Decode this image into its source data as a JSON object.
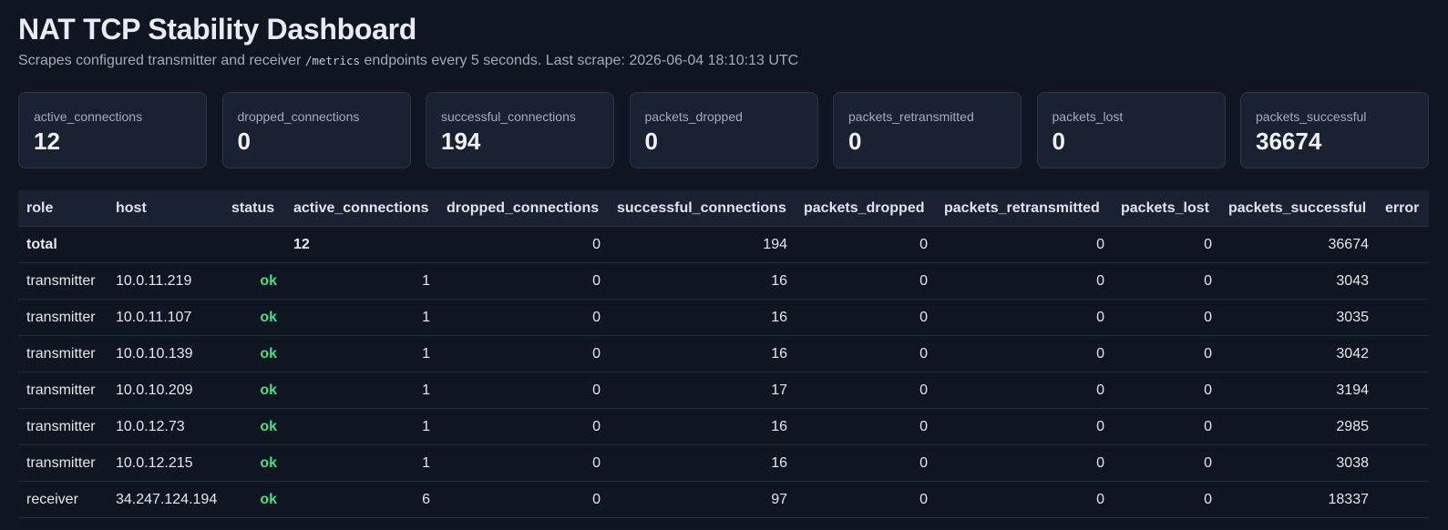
{
  "header": {
    "title": "NAT TCP Stability Dashboard",
    "subtitle": {
      "before": "Scrapes configured transmitter and receiver",
      "code": "/metrics",
      "after": "endpoints every 5 seconds. Last scrape: 2026-06-04 18:10:13 UTC"
    }
  },
  "cards": [
    {
      "label": "active_connections",
      "value": 12
    },
    {
      "label": "dropped_connections",
      "value": 0
    },
    {
      "label": "successful_connections",
      "value": 194
    },
    {
      "label": "packets_dropped",
      "value": 0
    },
    {
      "label": "packets_retransmitted",
      "value": 0
    },
    {
      "label": "packets_lost",
      "value": 0
    },
    {
      "label": "packets_successful",
      "value": 36674
    }
  ],
  "table": {
    "columns": [
      "role",
      "host",
      "status",
      "active_connections",
      "dropped_connections",
      "successful_connections",
      "packets_dropped",
      "packets_retransmitted",
      "packets_lost",
      "packets_successful",
      "error"
    ],
    "rows": [
      [
        "total",
        null,
        null,
        12,
        0,
        194,
        0,
        0,
        0,
        36674,
        null
      ],
      [
        "transmitter",
        "10.0.11.219",
        "ok",
        1,
        0,
        16,
        0,
        0,
        0,
        3043,
        null
      ],
      [
        "transmitter",
        "10.0.11.107",
        "ok",
        1,
        0,
        16,
        0,
        0,
        0,
        3035,
        null
      ],
      [
        "transmitter",
        "10.0.10.139",
        "ok",
        1,
        0,
        16,
        0,
        0,
        0,
        3042,
        null
      ],
      [
        "transmitter",
        "10.0.10.209",
        "ok",
        1,
        0,
        17,
        0,
        0,
        0,
        3194,
        null
      ],
      [
        "transmitter",
        "10.0.12.73",
        "ok",
        1,
        0,
        16,
        0,
        0,
        0,
        2985,
        null
      ],
      [
        "transmitter",
        "10.0.12.215",
        "ok",
        1,
        0,
        16,
        0,
        0,
        0,
        3038,
        null
      ],
      [
        "receiver",
        "34.247.124.194",
        "ok",
        6,
        0,
        97,
        0,
        0,
        0,
        18337,
        null
      ]
    ]
  }
}
